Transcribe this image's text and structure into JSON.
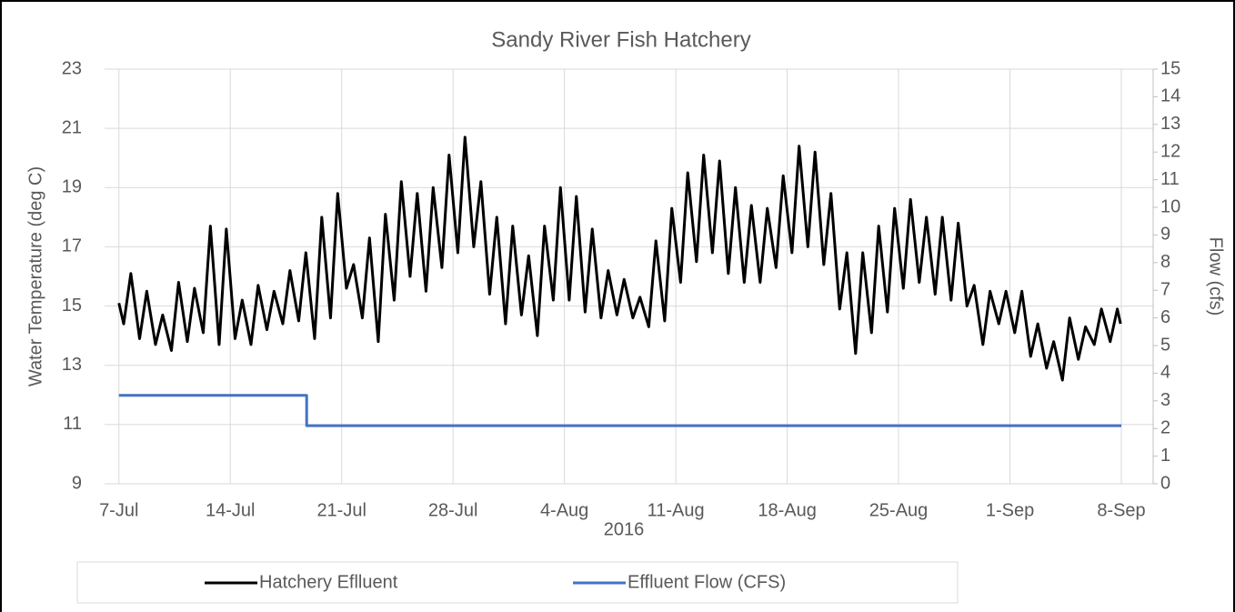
{
  "chart_data": {
    "type": "line",
    "title": "Sandy River Fish Hatchery",
    "x_label": "2016",
    "y_label": "Water Temperature (deg C)",
    "y2_label": "Flow (cfs)",
    "xlim": [
      -0.9,
      65
    ],
    "xticks": [
      {
        "value": 0,
        "label": "7-Jul"
      },
      {
        "value": 7,
        "label": "14-Jul"
      },
      {
        "value": 14,
        "label": "21-Jul"
      },
      {
        "value": 21,
        "label": "28-Jul"
      },
      {
        "value": 28,
        "label": "4-Aug"
      },
      {
        "value": 35,
        "label": "11-Aug"
      },
      {
        "value": 42,
        "label": "18-Aug"
      },
      {
        "value": 49,
        "label": "25-Aug"
      },
      {
        "value": 56,
        "label": "1-Sep"
      },
      {
        "value": 63,
        "label": "8-Sep"
      }
    ],
    "ylim": [
      9,
      23
    ],
    "yticks": [
      9,
      11,
      13,
      15,
      17,
      19,
      21,
      23
    ],
    "y2lim": [
      0,
      15
    ],
    "y2ticks": [
      0,
      1,
      2,
      3,
      4,
      5,
      6,
      7,
      8,
      9,
      10,
      11,
      12,
      13,
      14,
      15
    ],
    "grid": true,
    "legend": "bottom",
    "series": [
      {
        "name": "Hatchery Eflluent",
        "color": "#000000",
        "x": [
          0,
          0.3,
          0.75,
          1.3,
          1.75,
          2.3,
          2.75,
          3.3,
          3.75,
          4.3,
          4.75,
          5.3,
          5.75,
          6.3,
          6.75,
          7.3,
          7.75,
          8.3,
          8.75,
          9.3,
          9.75,
          10.3,
          10.75,
          11.3,
          11.75,
          12.3,
          12.75,
          13.3,
          13.75,
          14.3,
          14.75,
          15.3,
          15.75,
          16.3,
          16.75,
          17.3,
          17.75,
          18.3,
          18.75,
          19.3,
          19.75,
          20.3,
          20.75,
          21.3,
          21.75,
          22.3,
          22.75,
          23.3,
          23.75,
          24.3,
          24.75,
          25.3,
          25.75,
          26.3,
          26.75,
          27.3,
          27.75,
          28.3,
          28.75,
          29.3,
          29.75,
          30.3,
          30.75,
          31.3,
          31.75,
          32.3,
          32.75,
          33.3,
          33.75,
          34.3,
          34.75,
          35.3,
          35.75,
          36.3,
          36.75,
          37.3,
          37.75,
          38.3,
          38.75,
          39.3,
          39.75,
          40.3,
          40.75,
          41.3,
          41.75,
          42.3,
          42.75,
          43.3,
          43.75,
          44.3,
          44.75,
          45.3,
          45.75,
          46.3,
          46.75,
          47.3,
          47.75,
          48.3,
          48.75,
          49.3,
          49.75,
          50.3,
          50.75,
          51.3,
          51.75,
          52.3,
          52.75,
          53.3,
          53.75,
          54.3,
          54.75,
          55.3,
          55.75,
          56.3,
          56.75,
          57.3,
          57.75,
          58.3,
          58.75,
          59.3,
          59.75,
          60.3,
          60.75,
          61.3,
          61.75,
          62.3,
          62.75,
          62.95
        ],
        "values": [
          15.1,
          14.4,
          16.1,
          13.9,
          15.5,
          13.7,
          14.7,
          13.5,
          15.8,
          13.8,
          15.6,
          14.1,
          17.7,
          13.7,
          17.6,
          13.9,
          15.2,
          13.7,
          15.7,
          14.2,
          15.5,
          14.4,
          16.2,
          14.5,
          16.8,
          13.9,
          18.0,
          14.6,
          18.8,
          15.6,
          16.4,
          14.6,
          17.3,
          13.8,
          18.1,
          15.2,
          19.2,
          16.0,
          18.8,
          15.5,
          19.0,
          16.3,
          20.1,
          16.8,
          20.7,
          17.0,
          19.2,
          15.4,
          18.0,
          14.4,
          17.7,
          14.7,
          16.7,
          14.0,
          17.7,
          15.2,
          19.0,
          15.2,
          18.7,
          14.8,
          17.6,
          14.6,
          16.2,
          14.7,
          15.9,
          14.6,
          15.3,
          14.3,
          17.2,
          14.5,
          18.3,
          15.8,
          19.5,
          16.5,
          20.1,
          16.8,
          19.9,
          16.1,
          19.0,
          15.8,
          18.4,
          15.8,
          18.3,
          16.3,
          19.4,
          16.8,
          20.4,
          17.0,
          20.2,
          16.4,
          18.8,
          14.9,
          16.8,
          13.4,
          16.8,
          14.1,
          17.7,
          14.8,
          18.3,
          15.6,
          18.6,
          15.8,
          18.0,
          15.4,
          18.0,
          15.2,
          17.8,
          15.0,
          15.7,
          13.7,
          15.5,
          14.4,
          15.5,
          14.1,
          15.5,
          13.3,
          14.4,
          12.9,
          13.8,
          12.5,
          14.6,
          13.2,
          14.3,
          13.7,
          14.9,
          13.8,
          14.9,
          14.4
        ]
      },
      {
        "name": "Effluent Flow (CFS)",
        "color": "#4472c4",
        "axis": "y2",
        "x": [
          0,
          11.8,
          11.8,
          63
        ],
        "values": [
          3.2,
          3.2,
          2.1,
          2.1
        ]
      }
    ]
  }
}
